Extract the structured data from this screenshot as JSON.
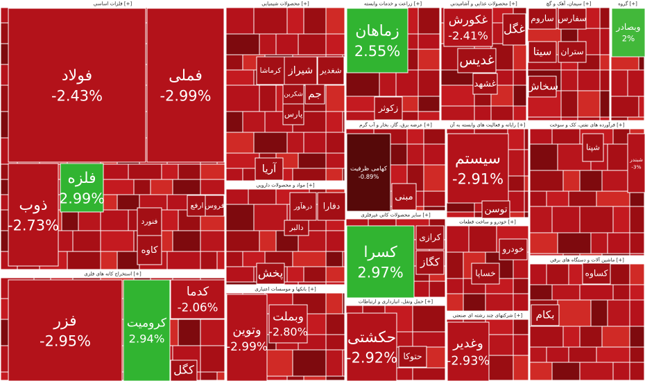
{
  "chart_data": {
    "type": "treemap",
    "sectors": [
      {
        "name": "فلزات اساسی [+]",
        "tiles": [
          {
            "name": "فولاد",
            "value": -2.43,
            "value_label": "-2.43%"
          },
          {
            "name": "فملی",
            "value": -2.99,
            "value_label": "-2.99%"
          },
          {
            "name": "ذوب",
            "value": -2.73,
            "value_label": "-2.73%"
          },
          {
            "name": "فلزه",
            "value": 2.99,
            "value_label": "2.99%"
          },
          {
            "name": "فنورد"
          },
          {
            "name": "کاوه"
          },
          {
            "name": "ارفع"
          },
          {
            "name": "فروس"
          }
        ]
      },
      {
        "name": "استخراج کانه های فلزی [+]",
        "tiles": [
          {
            "name": "فزر",
            "value": -2.95,
            "value_label": "-2.95%"
          },
          {
            "name": "کرومیت",
            "value": 2.94,
            "value_label": "2.94%"
          },
          {
            "name": "کدما",
            "value": -2.06,
            "value_label": "-2.06%"
          },
          {
            "name": "کگل"
          }
        ]
      },
      {
        "name": "محصولات شیمیایی [+]",
        "tiles": [
          {
            "name": "کرماشا"
          },
          {
            "name": "شیراز"
          },
          {
            "name": "شغدیر"
          },
          {
            "name": "شکربن"
          },
          {
            "name": "جم"
          },
          {
            "name": "پارس"
          },
          {
            "name": "آریا"
          }
        ]
      },
      {
        "name": "مواد و محصولات دارویی [+]",
        "tiles": [
          {
            "name": "دفارا"
          },
          {
            "name": "درهآور"
          },
          {
            "name": "دالبر"
          },
          {
            "name": "پخش"
          }
        ]
      },
      {
        "name": "بانکها و موسسات اعتباری [+]",
        "tiles": [
          {
            "name": "وتوین",
            "value": -2.99,
            "value_label": "-2.99%"
          },
          {
            "name": "وبملت",
            "value": -2.8,
            "value_label": "-2.80%"
          }
        ]
      },
      {
        "name": "زراعت و خدمات وابسته [+]",
        "tiles": [
          {
            "name": "زماهان",
            "value": 2.55,
            "value_label": "2.55%"
          },
          {
            "name": "زکوثر"
          }
        ]
      },
      {
        "name": "عرضه برق، گاز، بخار و آب گرم [+]",
        "tiles": [
          {
            "name": "کهامی ظرفیت",
            "value": -0.89,
            "value_label": "-0.89%"
          },
          {
            "name": "مبنی"
          }
        ]
      },
      {
        "name": "سایر محصولات کانی غیرفلزی [+]",
        "tiles": [
          {
            "name": "کسرا",
            "value": 2.97,
            "value_label": "2.97%"
          },
          {
            "name": "کرازی"
          },
          {
            "name": "کگاز"
          }
        ]
      },
      {
        "name": "حمل ونقل، انبارداری و ارتباطات [+]",
        "tiles": [
          {
            "name": "حکشتی",
            "value": -2.92,
            "value_label": "-2.92%"
          },
          {
            "name": "حتوکا"
          }
        ]
      },
      {
        "name": "محصولات غذایی و آشامیدنی [+]",
        "tiles": [
          {
            "name": "غکورش",
            "value": -2.41,
            "value_label": "-2.41%"
          },
          {
            "name": "غگل"
          },
          {
            "name": "غدیس"
          },
          {
            "name": "غشهد"
          }
        ]
      },
      {
        "name": "رایانه و فعالیت های وابسته به آن [+]",
        "tiles": [
          {
            "name": "سیستم",
            "value": -2.91,
            "value_label": "-2.91%"
          },
          {
            "name": "توسن"
          }
        ]
      },
      {
        "name": "خودرو و ساخت قطعات [+]",
        "tiles": [
          {
            "name": "خودرو"
          },
          {
            "name": "خساپا"
          }
        ]
      },
      {
        "name": "شرکتهای چند رشته ای صنعتی [+]",
        "tiles": [
          {
            "name": "وغدیر",
            "value": -2.93,
            "value_label": "-2.93%"
          }
        ]
      },
      {
        "name": "سیمان، آهک و گچ [+]",
        "tiles": [
          {
            "name": "ساروم"
          },
          {
            "name": "سفارس"
          },
          {
            "name": "سیتا"
          },
          {
            "name": "ستران"
          },
          {
            "name": "سخاش"
          }
        ]
      },
      {
        "name": "گروه [+]",
        "tiles": [
          {
            "name": "وبصادر",
            "value": 2,
            "value_label": "2%"
          }
        ]
      },
      {
        "name": "فرآورده های نفتی، کک و سوخت [+]",
        "tiles": [
          {
            "name": "شپنا"
          },
          {
            "name": "شبندر",
            "value": -3,
            "value_label": "-3%"
          }
        ]
      },
      {
        "name": "ماشین آلات و دستگاه های برقی [+]",
        "tiles": [
          {
            "name": "کساوه"
          },
          {
            "name": "بکام"
          }
        ]
      }
    ]
  }
}
